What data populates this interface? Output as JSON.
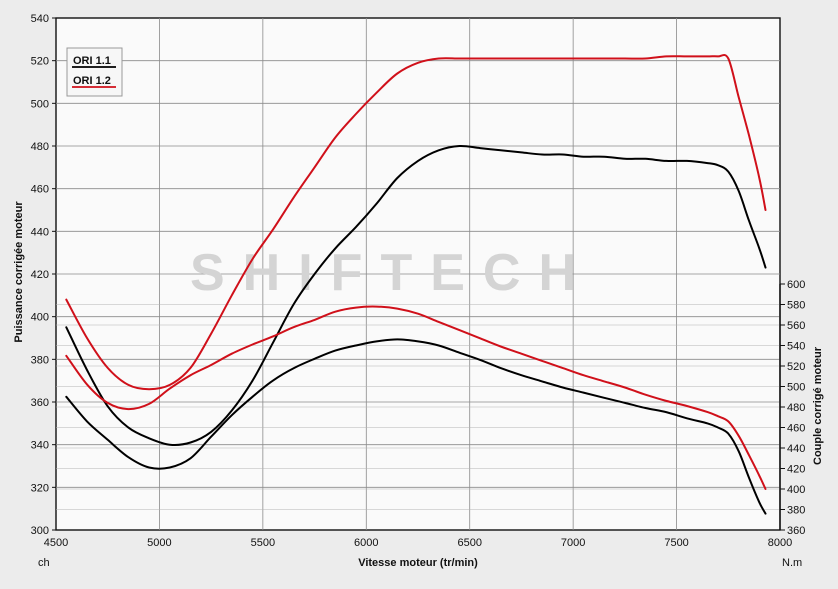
{
  "watermark": "SHIFTECH",
  "chart_data": {
    "type": "line",
    "xlabel": "Vitesse moteur (tr/min)",
    "ylabel": "Puissance corrigée moteur",
    "y2label": "Couple corrigé moteur",
    "x_unit": "ch",
    "y2_unit": "N.m",
    "xlim": [
      4500,
      8000
    ],
    "ylim": [
      300,
      540
    ],
    "y2lim": [
      360,
      600
    ],
    "x_ticks": [
      4500,
      5000,
      5500,
      6000,
      6500,
      7000,
      7500,
      8000
    ],
    "y_ticks": [
      300,
      320,
      340,
      360,
      380,
      400,
      420,
      440,
      460,
      480,
      500,
      520,
      540
    ],
    "y2_ticks": [
      360,
      380,
      400,
      420,
      440,
      460,
      480,
      500,
      520,
      540,
      560,
      580,
      600
    ],
    "legend": {
      "position": "top-left",
      "entries": [
        "ORI 1.1",
        "ORI 1.2"
      ]
    },
    "colors": {
      "ORI 1.1": "#000000",
      "ORI 1.2": "#d0101a"
    },
    "grid": true,
    "series": [
      {
        "name": "ORI 1.1",
        "axis": "left",
        "kind": "power",
        "x": [
          4550,
          4650,
          4750,
          4850,
          4950,
          5050,
          5150,
          5250,
          5350,
          5450,
          5550,
          5650,
          5750,
          5850,
          5950,
          6050,
          6150,
          6250,
          6350,
          6450,
          6550,
          6650,
          6750,
          6850,
          6950,
          7050,
          7150,
          7250,
          7350,
          7450,
          7550,
          7650,
          7700,
          7750,
          7800,
          7850,
          7900,
          7930
        ],
        "values": [
          395,
          375,
          358,
          348,
          343,
          340,
          341,
          346,
          356,
          370,
          388,
          406,
          420,
          432,
          442,
          453,
          465,
          473,
          478,
          480,
          479,
          478,
          477,
          476,
          476,
          475,
          475,
          474,
          474,
          473,
          473,
          472,
          471,
          468,
          459,
          445,
          432,
          423
        ]
      },
      {
        "name": "ORI 1.2",
        "axis": "left",
        "kind": "power",
        "x": [
          4550,
          4650,
          4750,
          4850,
          4950,
          5050,
          5150,
          5250,
          5350,
          5450,
          5550,
          5650,
          5750,
          5850,
          5950,
          6050,
          6150,
          6250,
          6350,
          6450,
          6550,
          6650,
          6750,
          6850,
          6950,
          7050,
          7150,
          7250,
          7350,
          7450,
          7550,
          7650,
          7700,
          7750,
          7800,
          7850,
          7900,
          7930
        ],
        "values": [
          408,
          390,
          376,
          368,
          366,
          368,
          376,
          392,
          410,
          427,
          441,
          456,
          470,
          484,
          495,
          505,
          514,
          519,
          521,
          521,
          521,
          521,
          521,
          521,
          521,
          521,
          521,
          521,
          521,
          522,
          522,
          522,
          522,
          521,
          503,
          485,
          465,
          450
        ]
      },
      {
        "name": "ORI 1.1",
        "axis": "right",
        "kind": "torque",
        "x": [
          4550,
          4650,
          4750,
          4850,
          4950,
          5050,
          5150,
          5250,
          5350,
          5450,
          5550,
          5650,
          5750,
          5850,
          5950,
          6050,
          6150,
          6250,
          6350,
          6450,
          6550,
          6650,
          6750,
          6850,
          6950,
          7050,
          7150,
          7250,
          7350,
          7450,
          7550,
          7650,
          7700,
          7750,
          7800,
          7850,
          7900,
          7930
        ],
        "values": [
          490,
          466,
          448,
          431,
          421,
          421,
          430,
          451,
          472,
          490,
          506,
          518,
          527,
          535,
          540,
          544,
          546,
          544,
          540,
          533,
          526,
          518,
          511,
          505,
          499,
          494,
          489,
          484,
          479,
          475,
          469,
          464,
          460,
          454,
          437,
          411,
          387,
          376
        ]
      },
      {
        "name": "ORI 1.2",
        "axis": "right",
        "kind": "torque",
        "x": [
          4550,
          4650,
          4750,
          4850,
          4950,
          5050,
          5150,
          5250,
          5350,
          5450,
          5550,
          5650,
          5750,
          5850,
          5950,
          6050,
          6150,
          6250,
          6350,
          6450,
          6550,
          6650,
          6750,
          6850,
          6950,
          7050,
          7150,
          7250,
          7350,
          7450,
          7550,
          7650,
          7700,
          7750,
          7800,
          7850,
          7900,
          7930
        ],
        "values": [
          530,
          502,
          484,
          478,
          483,
          498,
          511,
          521,
          532,
          541,
          549,
          558,
          565,
          573,
          577,
          578,
          576,
          571,
          563,
          555,
          547,
          539,
          532,
          525,
          518,
          511,
          505,
          499,
          492,
          486,
          481,
          475,
          471,
          466,
          452,
          433,
          413,
          400
        ]
      }
    ]
  }
}
